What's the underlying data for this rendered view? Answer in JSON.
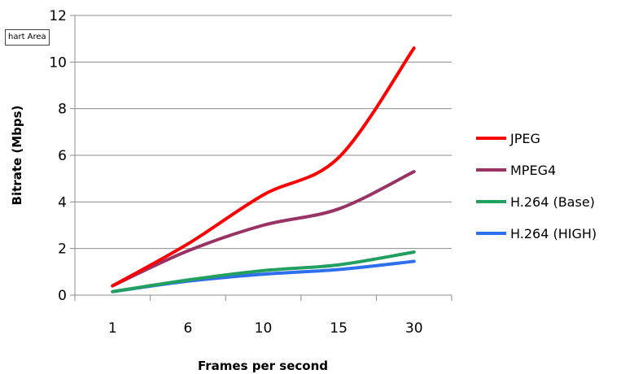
{
  "tooltip": {
    "text": "hart Area"
  },
  "chart_data": {
    "type": "line",
    "categories": [
      "1",
      "6",
      "10",
      "15",
      "30"
    ],
    "xlabel": "Frames per second",
    "ylabel": "Bitrate (Mbps)",
    "ylim": [
      0,
      12
    ],
    "yticks": [
      0,
      2,
      4,
      6,
      8,
      10,
      12
    ],
    "grid": true,
    "legend": "right",
    "series": [
      {
        "name": "JPEG",
        "color": "#ff0000",
        "values": [
          0.4,
          2.2,
          4.3,
          5.9,
          10.6
        ]
      },
      {
        "name": "MPEG4",
        "color": "#993366",
        "values": [
          0.4,
          1.9,
          3.0,
          3.7,
          5.3
        ]
      },
      {
        "name": "H.264 (Base)",
        "color": "#22a060",
        "values": [
          0.15,
          0.65,
          1.05,
          1.3,
          1.85
        ]
      },
      {
        "name": "H.264 (HIGH)",
        "color": "#2e6ff0",
        "values": [
          0.15,
          0.6,
          0.9,
          1.1,
          1.45
        ]
      }
    ]
  }
}
